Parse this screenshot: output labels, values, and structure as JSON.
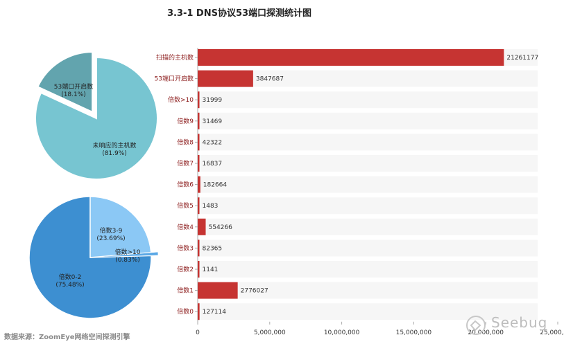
{
  "title": "3.3-1 DNS协议53端口探测统计图",
  "source": "数据来源：ZoomEye网络空间探测引擎",
  "watermark": "Seebug",
  "colors": {
    "bar": "#c63432",
    "barTrack": "#f6f6f6",
    "pie1Main": "#77c5d1",
    "pie1Slice": "#62a4ae",
    "pie2Main": "#3d8fd1",
    "pie2Slice": "#8bc8f5",
    "pie2Small": "#5aa8e6",
    "categoryText": "#8b1a1a"
  },
  "chart_data": [
    {
      "type": "bar",
      "orientation": "horizontal",
      "categories": [
        "扫描的主机数",
        "53端口开启数",
        "倍数>10",
        "倍数9",
        "倍数8",
        "倍数7",
        "倍数6",
        "倍数5",
        "倍数4",
        "倍数3",
        "倍数2",
        "倍数1",
        "倍数0"
      ],
      "values": [
        21261177,
        3847687,
        31999,
        31469,
        42322,
        16837,
        182664,
        1483,
        554266,
        82365,
        1141,
        2776027,
        127114
      ],
      "value_labels": [
        "21261177",
        "3847687",
        "31999",
        "31469",
        "42322",
        "16837",
        "182664",
        "1483",
        "554266",
        "82365",
        "1141",
        "2776027",
        "127114"
      ],
      "xlim": [
        0,
        25000000
      ],
      "ticks": [
        0,
        5000000,
        10000000,
        15000000,
        20000000,
        25000000
      ],
      "tick_labels": [
        "0",
        "5,000,000",
        "10,000,000",
        "15,000,000",
        "20,000,000",
        "25,000,000"
      ],
      "grid": false
    },
    {
      "type": "pie",
      "labels": [
        "未响应的主机数",
        "53端口开启数"
      ],
      "values": [
        81.9,
        18.1
      ],
      "value_labels": [
        "(81.9%)",
        "(18.1%)"
      ],
      "exploded": [
        false,
        true
      ]
    },
    {
      "type": "pie",
      "labels": [
        "倍数0-2",
        "倍数3-9",
        "倍数>10"
      ],
      "values": [
        75.48,
        23.69,
        0.83
      ],
      "value_labels": [
        "(75.48%)",
        "(23.69%)",
        "(0.83%)"
      ],
      "exploded": [
        false,
        false,
        true
      ]
    }
  ]
}
